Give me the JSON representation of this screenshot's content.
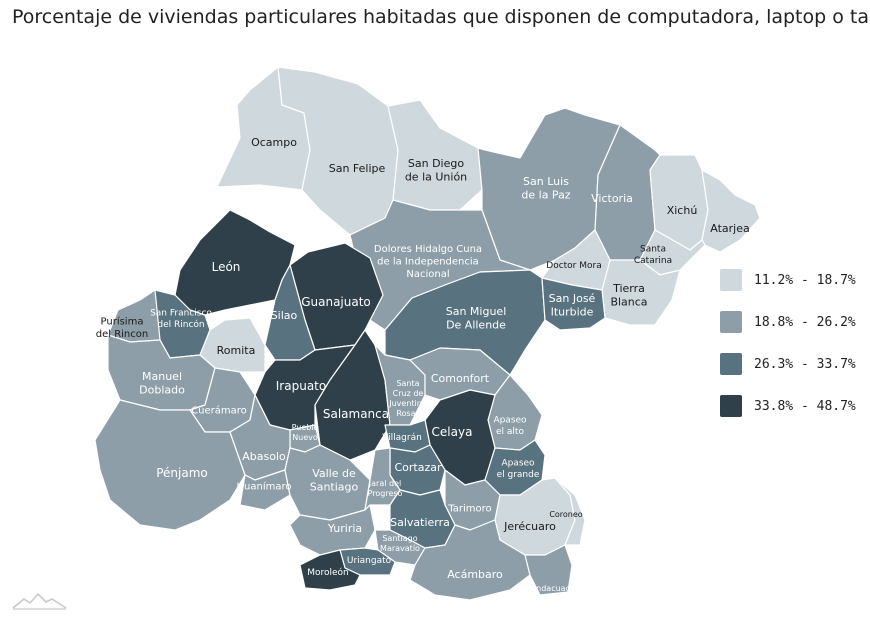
{
  "title": "Porcentaje de viviendas particulares habitadas que disponen de computadora, laptop o tablet",
  "legend": [
    {
      "label": "11.2% - 18.7%",
      "color": "#cfd8dc"
    },
    {
      "label": "18.8% - 26.2%",
      "color": "#8d9ea9"
    },
    {
      "label": "26.3% - 33.7%",
      "color": "#59727f"
    },
    {
      "label": "33.8% - 48.7%",
      "color": "#2f404a"
    }
  ],
  "municipalities": [
    {
      "id": "ocampo",
      "lines": [
        "Ocampo"
      ],
      "class": 0
    },
    {
      "id": "san-felipe",
      "lines": [
        "San Felipe"
      ],
      "class": 0
    },
    {
      "id": "san-diego",
      "lines": [
        "San Diego",
        "de la Unión"
      ],
      "class": 0
    },
    {
      "id": "san-luis",
      "lines": [
        "San Luis",
        "de la Paz"
      ],
      "class": 1
    },
    {
      "id": "victoria",
      "lines": [
        "Victoria"
      ],
      "class": 1
    },
    {
      "id": "xichu",
      "lines": [
        "Xichú"
      ],
      "class": 0
    },
    {
      "id": "atarjea",
      "lines": [
        "Atarjea"
      ],
      "class": 0
    },
    {
      "id": "santa-catarina",
      "lines": [
        "Santa",
        "Catarina"
      ],
      "class": 0
    },
    {
      "id": "tierra-blanca",
      "lines": [
        "Tierra",
        "Blanca"
      ],
      "class": 0
    },
    {
      "id": "doctor-mora",
      "lines": [
        "Doctor Mora"
      ],
      "class": 0
    },
    {
      "id": "dolores",
      "lines": [
        "Dolores Hidalgo Cuna",
        "de la Independencia",
        "Nacional"
      ],
      "class": 1
    },
    {
      "id": "leon",
      "lines": [
        "León"
      ],
      "class": 3
    },
    {
      "id": "guanajuato",
      "lines": [
        "Guanajuato"
      ],
      "class": 3
    },
    {
      "id": "silao",
      "lines": [
        "Silao"
      ],
      "class": 2
    },
    {
      "id": "san-miguel",
      "lines": [
        "San Miguel",
        "De Allende"
      ],
      "class": 2
    },
    {
      "id": "san-jose",
      "lines": [
        "San José",
        "Iturbide"
      ],
      "class": 2
    },
    {
      "id": "purisima",
      "lines": [
        "Purísima",
        "del Rincon"
      ],
      "class": 1
    },
    {
      "id": "san-francisco",
      "lines": [
        "San Francisco",
        "del Rincón"
      ],
      "class": 2
    },
    {
      "id": "romita",
      "lines": [
        "Romita"
      ],
      "class": 0
    },
    {
      "id": "manuel-doblado",
      "lines": [
        "Manuel",
        "Doblado"
      ],
      "class": 1
    },
    {
      "id": "cueramaro",
      "lines": [
        "Cuerámaro"
      ],
      "class": 1
    },
    {
      "id": "irapuato",
      "lines": [
        "Irapuato"
      ],
      "class": 3
    },
    {
      "id": "salamanca",
      "lines": [
        "Salamanca"
      ],
      "class": 3
    },
    {
      "id": "santa-cruz",
      "lines": [
        "Santa",
        "Cruz de",
        "Juventino",
        "Rosas"
      ],
      "class": 1
    },
    {
      "id": "comonfort",
      "lines": [
        "Comonfort"
      ],
      "class": 1
    },
    {
      "id": "apaseo-alto",
      "lines": [
        "Apaseo",
        "el alto"
      ],
      "class": 1
    },
    {
      "id": "celaya",
      "lines": [
        "Celaya"
      ],
      "class": 3
    },
    {
      "id": "apaseo-grande",
      "lines": [
        "Apaseo",
        "el grande"
      ],
      "class": 2
    },
    {
      "id": "villagran",
      "lines": [
        "Villagrán"
      ],
      "class": 2
    },
    {
      "id": "cortazar",
      "lines": [
        "Cortazar"
      ],
      "class": 2
    },
    {
      "id": "pueblo-nuevo",
      "lines": [
        "Pueblo",
        "Nuevo"
      ],
      "class": 1
    },
    {
      "id": "penjamo",
      "lines": [
        "Pénjamo"
      ],
      "class": 1
    },
    {
      "id": "abasolo",
      "lines": [
        "Abasolo"
      ],
      "class": 1
    },
    {
      "id": "huanimaro",
      "lines": [
        "Huanímaro"
      ],
      "class": 1
    },
    {
      "id": "valle",
      "lines": [
        "Valle de",
        "Santiago"
      ],
      "class": 1
    },
    {
      "id": "jaral",
      "lines": [
        "Jaral del",
        "Progreso"
      ],
      "class": 1
    },
    {
      "id": "tarimoro",
      "lines": [
        "Tarimoro"
      ],
      "class": 1
    },
    {
      "id": "jerecuaro",
      "lines": [
        "Jerécuaro"
      ],
      "class": 0
    },
    {
      "id": "coroneo",
      "lines": [
        "Coroneo"
      ],
      "class": 0
    },
    {
      "id": "yuriria",
      "lines": [
        "Yuriria"
      ],
      "class": 1
    },
    {
      "id": "salvatierra",
      "lines": [
        "Salvatierra"
      ],
      "class": 2
    },
    {
      "id": "santiago-maravatio",
      "lines": [
        "Santiago",
        "Maravatío"
      ],
      "class": 1
    },
    {
      "id": "uriangato",
      "lines": [
        "Uriangato"
      ],
      "class": 2
    },
    {
      "id": "moroleon",
      "lines": [
        "Moroleón"
      ],
      "class": 3
    },
    {
      "id": "acambaro",
      "lines": [
        "Acámbaro"
      ],
      "class": 1
    },
    {
      "id": "tarandacuao",
      "lines": [
        "Tarandacuao"
      ],
      "class": 1
    }
  ]
}
